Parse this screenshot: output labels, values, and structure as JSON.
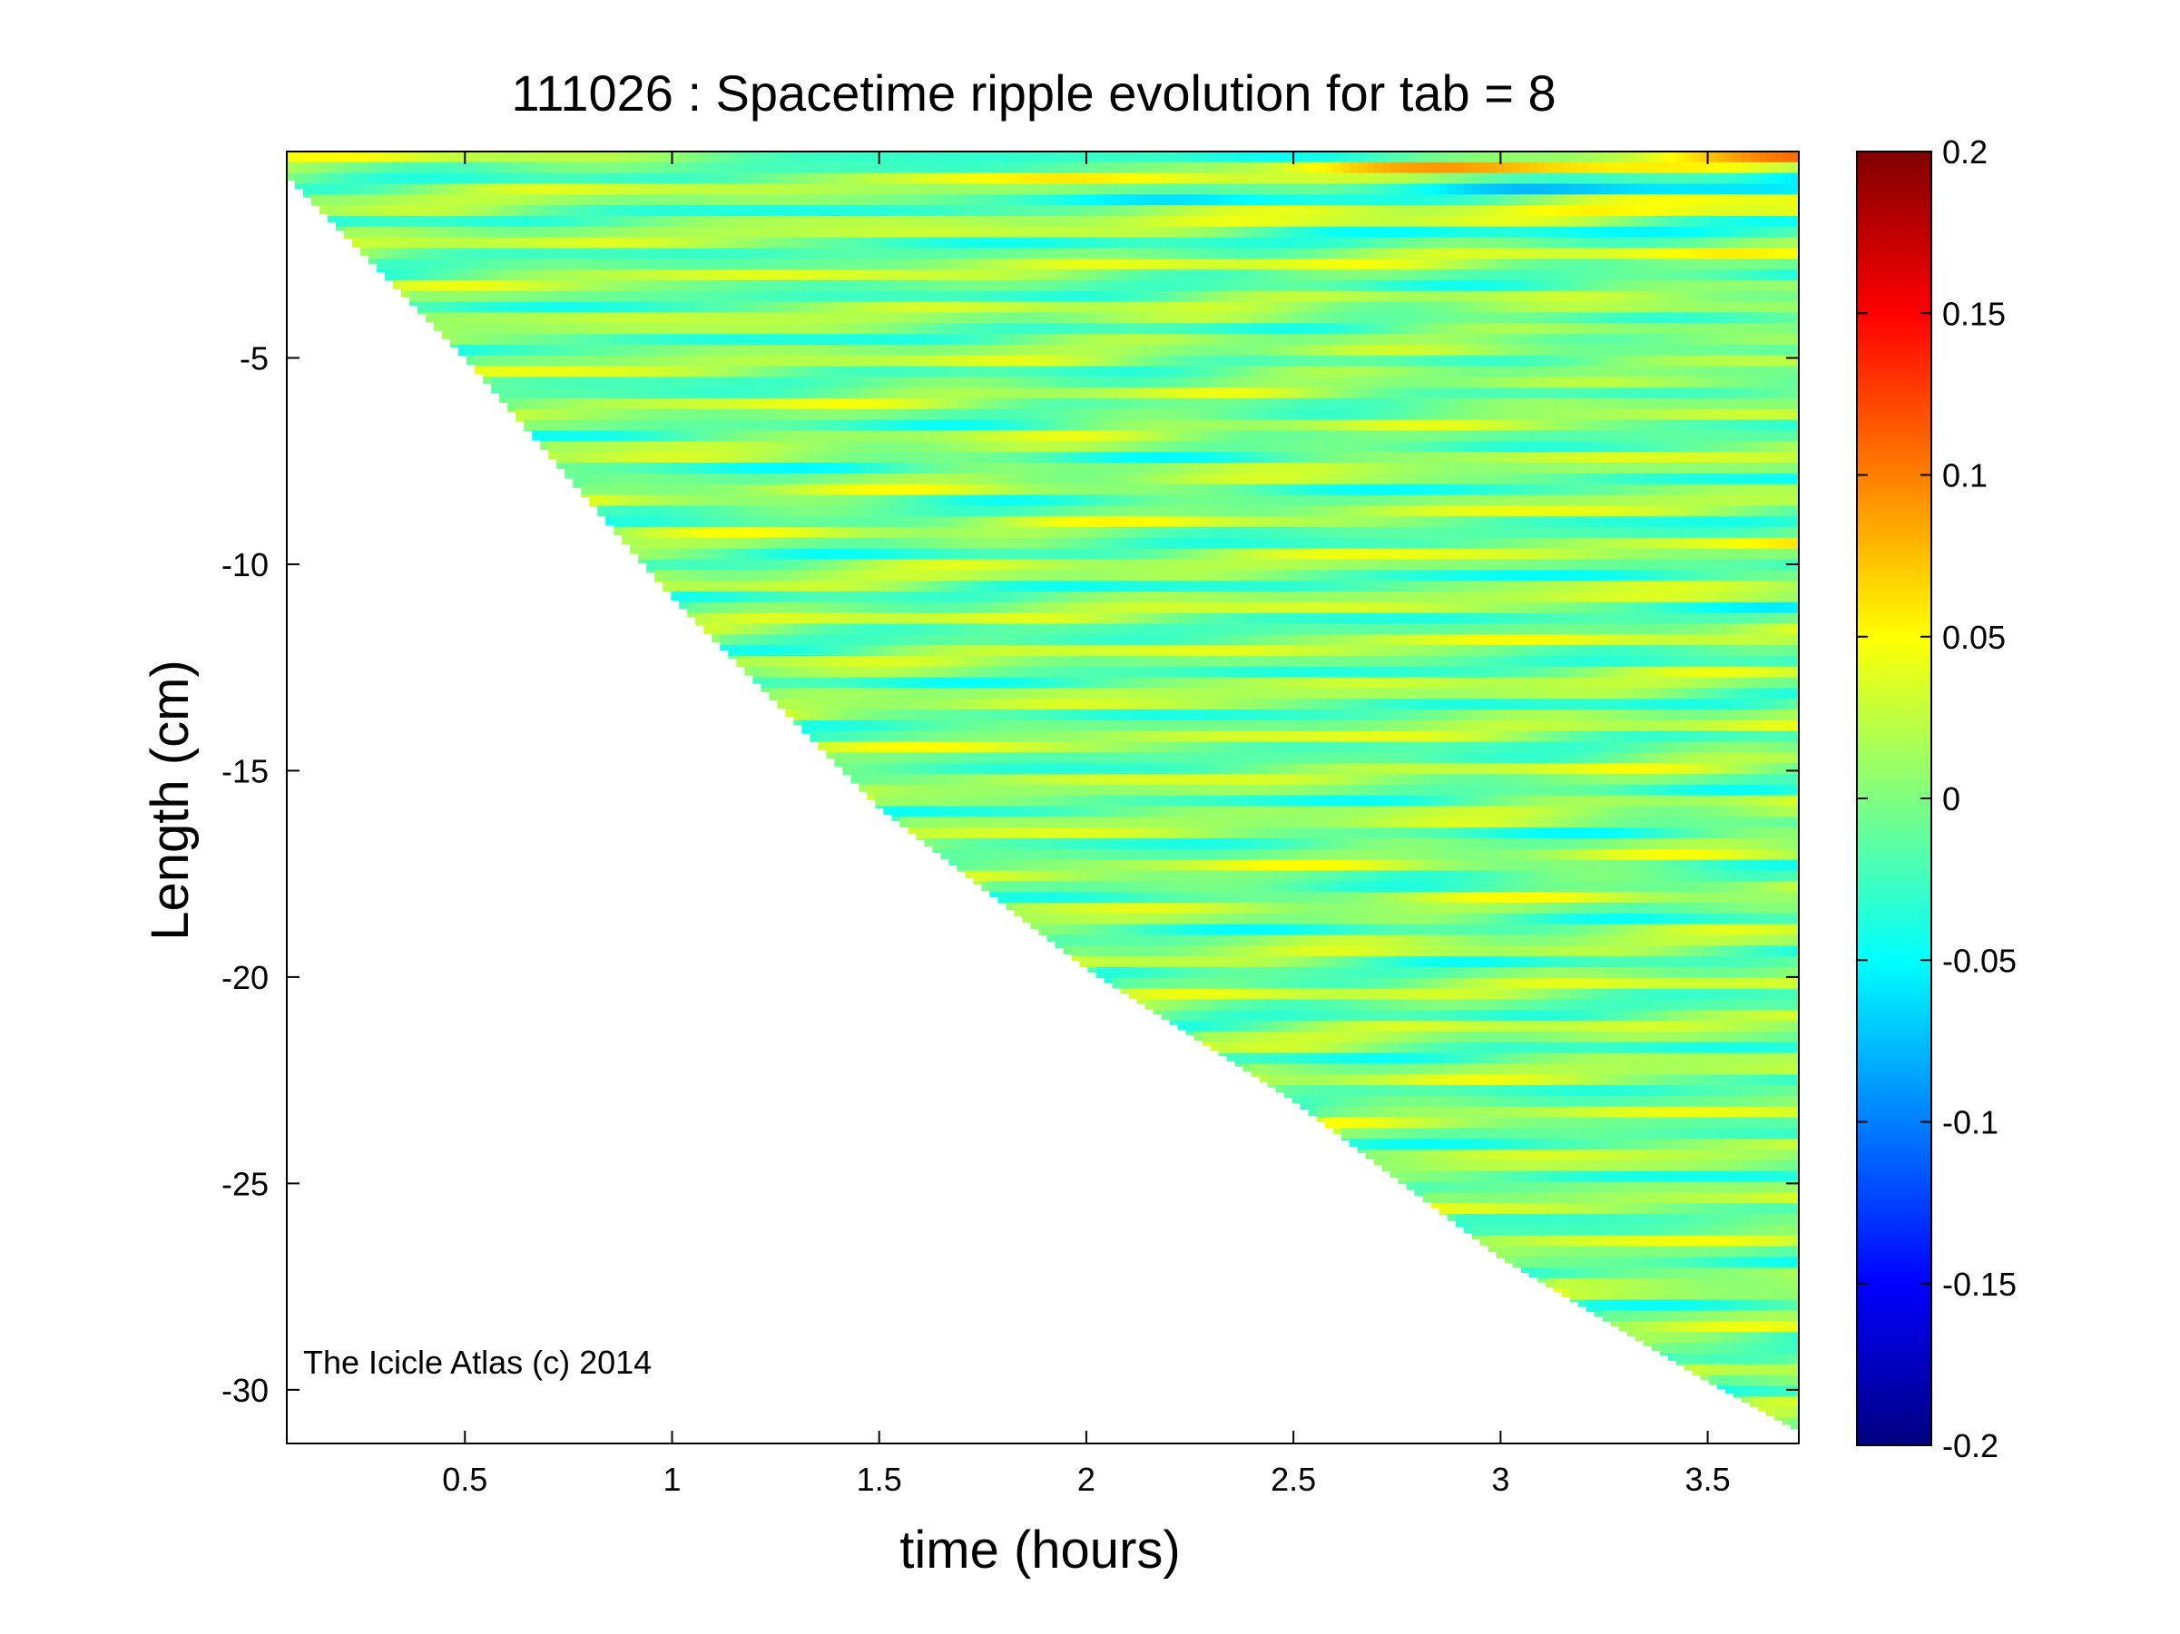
{
  "chart_data": {
    "type": "heatmap",
    "title": "111026 : Spacetime ripple evolution for tab = 8",
    "xlabel": "time (hours)",
    "ylabel": "Length (cm)",
    "xlim": [
      0.07,
      3.72
    ],
    "ylim": [
      -31.3,
      0.0
    ],
    "xticks": [
      0.5,
      1,
      1.5,
      2,
      2.5,
      3,
      3.5
    ],
    "xtick_labels": [
      "0.5",
      "1",
      "1.5",
      "2",
      "2.5",
      "3",
      "3.5"
    ],
    "yticks": [
      -5,
      -10,
      -15,
      -20,
      -25,
      -30
    ],
    "ytick_labels": [
      "-5",
      "-10",
      "-15",
      "-20",
      "-25",
      "-30"
    ],
    "colorbar": {
      "colormap": "jet",
      "clim": [
        -0.2,
        0.2
      ],
      "ticks": [
        0.2,
        0.15,
        0.1,
        0.05,
        0,
        -0.05,
        -0.1,
        -0.15,
        -0.2
      ],
      "tick_labels": [
        "0.2",
        "0.15",
        "0.1",
        "0.05",
        "0",
        "-0.05",
        "-0.1",
        "-0.15",
        "-0.2"
      ]
    },
    "data_boundary": {
      "description_units": "icicle tip length (cm) vs time (hours)",
      "time": [
        0.07,
        0.5,
        1.0,
        1.5,
        2.0,
        2.5,
        3.0,
        3.5,
        3.72
      ],
      "tip_length": [
        -0.6,
        -5.0,
        -10.8,
        -15.9,
        -19.8,
        -23.0,
        -26.8,
        -29.8,
        -31.0
      ]
    },
    "grid": false,
    "annotation": "The Icicle Atlas (c) 2014"
  }
}
